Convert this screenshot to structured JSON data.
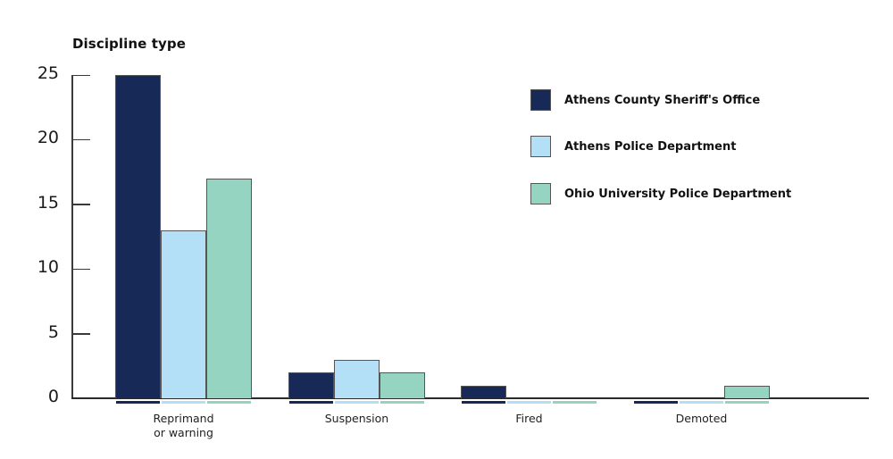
{
  "chart_data": {
    "type": "bar",
    "title": "Discipline type",
    "xlabel": "",
    "ylabel": "",
    "ylim": [
      0,
      25
    ],
    "yticks": [
      0,
      5,
      10,
      15,
      20,
      25
    ],
    "categories": [
      "Reprimand\nor warning",
      "Suspension",
      "Fired",
      "Demoted"
    ],
    "series": [
      {
        "name": "Athens County Sheriff's Office",
        "color": "#172957",
        "values": [
          25,
          2,
          1,
          0
        ]
      },
      {
        "name": "Athens Police Department",
        "color": "#b3e0f7",
        "values": [
          13,
          3,
          0,
          0
        ]
      },
      {
        "name": "Ohio University Police Department",
        "color": "#96d4c2",
        "values": [
          17,
          2,
          0,
          1
        ]
      }
    ],
    "grid": false,
    "legend_position": "upper right"
  },
  "labels": {
    "title": "Discipline type",
    "yticks": [
      "0",
      "5",
      "10",
      "15",
      "20",
      "25"
    ],
    "categories": [
      "Reprimand\nor warning",
      "Suspension",
      "Fired",
      "Demoted"
    ],
    "legend": [
      "Athens County Sheriff's Office",
      "Athens Police Department",
      "Ohio University Police Department"
    ]
  }
}
